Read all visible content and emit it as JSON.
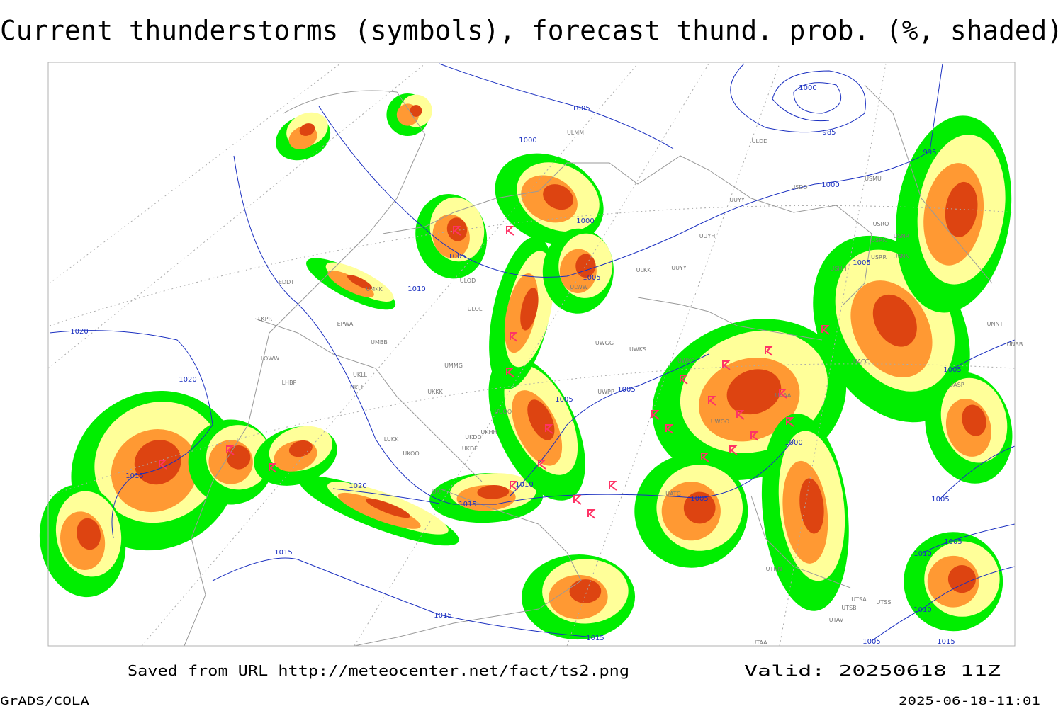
{
  "title": "Current thunderstorms (symbols), forecast thund. prob. (%, shaded)",
  "footer": {
    "source": "Saved from URL http://meteocenter.net/fact/ts2.png",
    "valid": "Valid: 20250618 11Z",
    "software": "GrADS/COLA",
    "timestamp": "2025-06-18-11:01"
  },
  "isobar_labels": [
    "1005",
    "1000",
    "985",
    "995",
    "1000",
    "1000",
    "1000",
    "1005",
    "1010",
    "1005",
    "1005",
    "1020",
    "1020",
    "1005",
    "1005",
    "1015",
    "1020",
    "1010",
    "1015",
    "1005",
    "1000",
    "1005",
    "1005",
    "1005",
    "1010",
    "1010",
    "1015",
    "1015",
    "1015",
    "1005",
    "1015"
  ],
  "station_labels": [
    "ULMM",
    "ULDD",
    "USDD",
    "USMU",
    "UUYY",
    "USRO",
    "USRK",
    "USNR",
    "UUYH",
    "USRR",
    "USNN",
    "USHH",
    "ULKK",
    "UUYY",
    "ULWW",
    "ULOD",
    "ULOL",
    "UMKK",
    "EDDT",
    "EPWA",
    "UMMG",
    "LKPR",
    "UMBB",
    "LOWW",
    "LHBP",
    "UKLL",
    "UKLI",
    "UKKK",
    "UUOO",
    "UKHH",
    "UKDD",
    "UKDE",
    "LUKK",
    "UKOO",
    "UKFF",
    "UWGG",
    "UWKS",
    "UWPP",
    "UWKE",
    "UWOO",
    "UATG",
    "UTNN",
    "UTSA",
    "UTSB",
    "UTAV",
    "UTAA",
    "UNNT",
    "UNBB",
    "UASP",
    "UAAA",
    "UACC",
    "UTSS"
  ]
}
